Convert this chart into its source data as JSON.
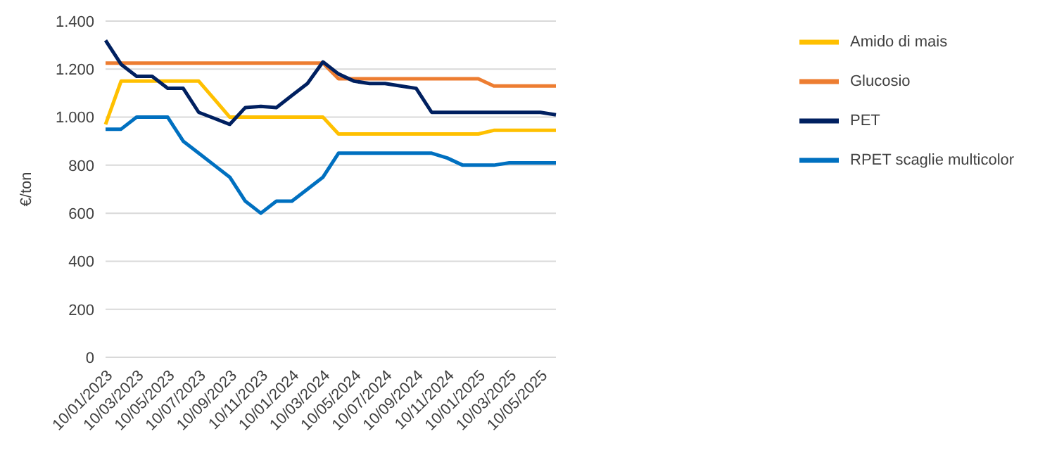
{
  "chart_data": {
    "type": "line",
    "ylabel": "€/ton",
    "categories": [
      "10/01/2023",
      null,
      "10/03/2023",
      null,
      "10/05/2023",
      null,
      "10/07/2023",
      null,
      "10/09/2023",
      null,
      "10/11/2023",
      null,
      "10/01/2024",
      null,
      "10/03/2024",
      null,
      "10/05/2024",
      null,
      "10/07/2024",
      null,
      "10/09/2024",
      null,
      "10/11/2024",
      null,
      "10/01/2025",
      null,
      "10/03/2025",
      null,
      "10/05/2025",
      null
    ],
    "series": [
      {
        "name": "Amido di mais",
        "color": "#ffc000",
        "values": [
          970,
          1150,
          1150,
          1150,
          1150,
          1150,
          1150,
          1075,
          1000,
          1000,
          1000,
          1000,
          1000,
          1000,
          1000,
          930,
          930,
          930,
          930,
          930,
          930,
          930,
          930,
          930,
          930,
          945,
          945,
          945,
          945,
          945
        ]
      },
      {
        "name": "Glucosio",
        "color": "#ed7d31",
        "values": [
          1225,
          1225,
          1225,
          1225,
          1225,
          1225,
          1225,
          1225,
          1225,
          1225,
          1225,
          1225,
          1225,
          1225,
          1225,
          1160,
          1160,
          1160,
          1160,
          1160,
          1160,
          1160,
          1160,
          1160,
          1160,
          1130,
          1130,
          1130,
          1130,
          1130
        ]
      },
      {
        "name": "PET",
        "color": "#002060",
        "values": [
          1320,
          1220,
          1170,
          1170,
          1120,
          1120,
          1020,
          995,
          970,
          1040,
          1045,
          1040,
          1090,
          1140,
          1230,
          1180,
          1150,
          1140,
          1140,
          1130,
          1120,
          1020,
          1020,
          1020,
          1020,
          1020,
          1020,
          1020,
          1020,
          1010
        ]
      },
      {
        "name": "RPET scaglie multicolor",
        "color": "#0070c0",
        "values": [
          950,
          950,
          1000,
          1000,
          1000,
          900,
          850,
          800,
          750,
          650,
          600,
          650,
          650,
          700,
          750,
          850,
          850,
          850,
          850,
          850,
          850,
          850,
          830,
          800,
          800,
          800,
          810,
          810,
          810,
          810
        ]
      }
    ],
    "ylim": [
      0,
      1400
    ],
    "yticks": [
      0,
      200,
      400,
      600,
      800,
      {
        "value": 1000,
        "label": "1.000"
      },
      {
        "value": 1200,
        "label": "1.200"
      },
      {
        "value": 1400,
        "label": "1.400"
      }
    ],
    "grid": "y",
    "legend": "right",
    "line_style": "solid"
  }
}
